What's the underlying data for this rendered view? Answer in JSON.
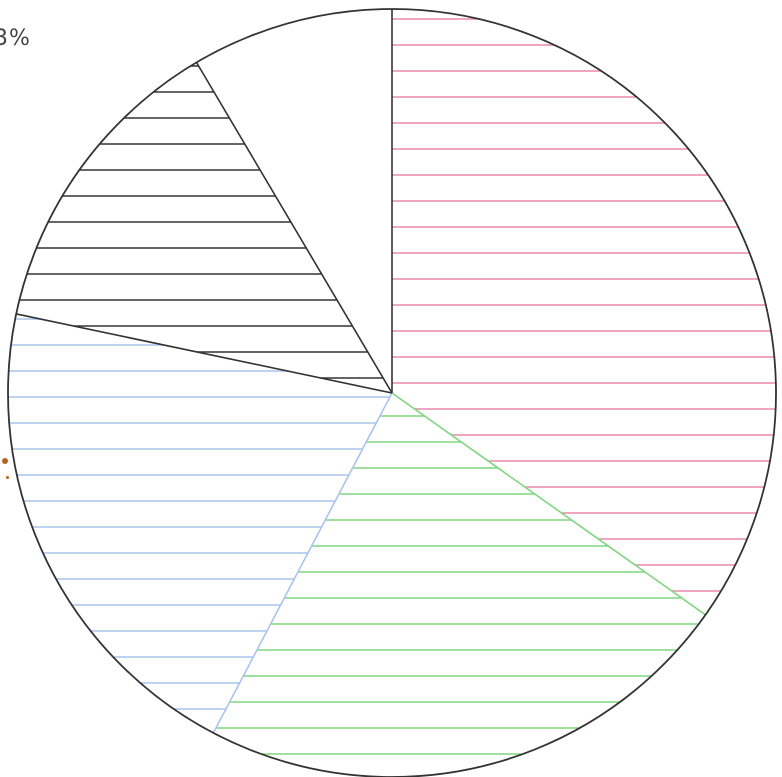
{
  "chart_data": {
    "type": "pie",
    "title": "",
    "start_angle_deg": 0,
    "direction": "clockwise",
    "slices": [
      {
        "value": 34.8,
        "color": "#e88aa8",
        "fill": "horizontal-hatch"
      },
      {
        "value": 22.9,
        "color": "#7fd67f",
        "fill": "horizontal-hatch"
      },
      {
        "value": 20.6,
        "color": "#a9c4ee",
        "fill": "horizontal-hatch"
      },
      {
        "value": 13.2,
        "color": "#333333",
        "fill": "horizontal-hatch"
      },
      {
        "value": 8.5,
        "color": "#ffffff",
        "fill": "none"
      }
    ],
    "outline_color": "#333333",
    "annotations": [
      {
        "text": "3%"
      }
    ],
    "legend": "none"
  }
}
